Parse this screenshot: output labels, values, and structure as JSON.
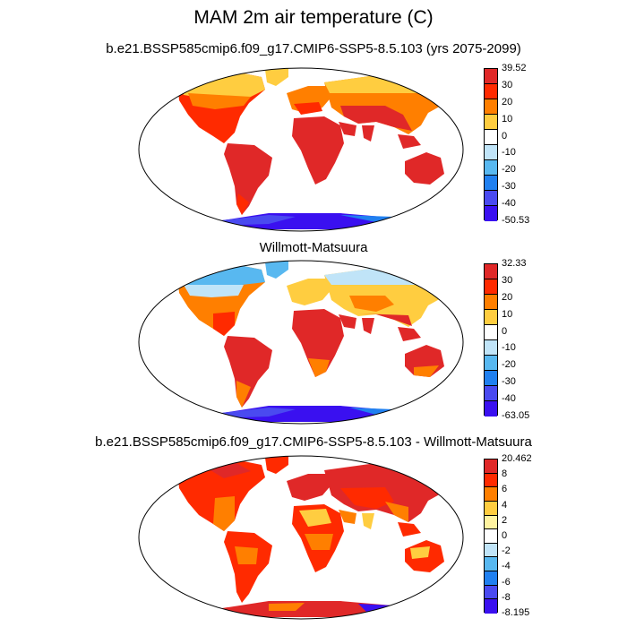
{
  "figure": {
    "title": "MAM 2m air temperature (C)"
  },
  "panels": [
    {
      "id": "model",
      "title": "b.e21.BSSP585cmip6.f09_g17.CMIP6-SSP5-8.5.103 (yrs 2075-2099)",
      "colorbar": {
        "labels": [
          "39.52",
          "30",
          "20",
          "10",
          "0",
          "-10",
          "-20",
          "-30",
          "-40",
          "-50.53"
        ],
        "colors": [
          "#e02828",
          "#ff2a00",
          "#ff7f00",
          "#ffcd40",
          "#ffffff",
          "#c0e4f8",
          "#58b8f0",
          "#2080f0",
          "#4a4af0",
          "#3a10f0"
        ]
      }
    },
    {
      "id": "obs",
      "title": "Willmott-Matsuura",
      "colorbar": {
        "labels": [
          "32.33",
          "30",
          "20",
          "10",
          "0",
          "-10",
          "-20",
          "-30",
          "-40",
          "-63.05"
        ],
        "colors": [
          "#e02828",
          "#ff2a00",
          "#ff7f00",
          "#ffcd40",
          "#ffffff",
          "#c0e4f8",
          "#58b8f0",
          "#2080f0",
          "#4a4af0",
          "#3a10f0"
        ]
      }
    },
    {
      "id": "diff",
      "title": "b.e21.BSSP585cmip6.f09_g17.CMIP6-SSP5-8.5.103 - Willmott-Matsuura",
      "colorbar": {
        "labels": [
          "20.462",
          "8",
          "6",
          "4",
          "2",
          "0",
          "-2",
          "-4",
          "-6",
          "-8",
          "-8.195"
        ],
        "colors": [
          "#e02828",
          "#ff2a00",
          "#ff7f00",
          "#ffcd40",
          "#fff3a0",
          "#ffffff",
          "#c0e4f8",
          "#58b8f0",
          "#2080f0",
          "#4a4af0",
          "#3a10f0"
        ]
      }
    }
  ]
}
